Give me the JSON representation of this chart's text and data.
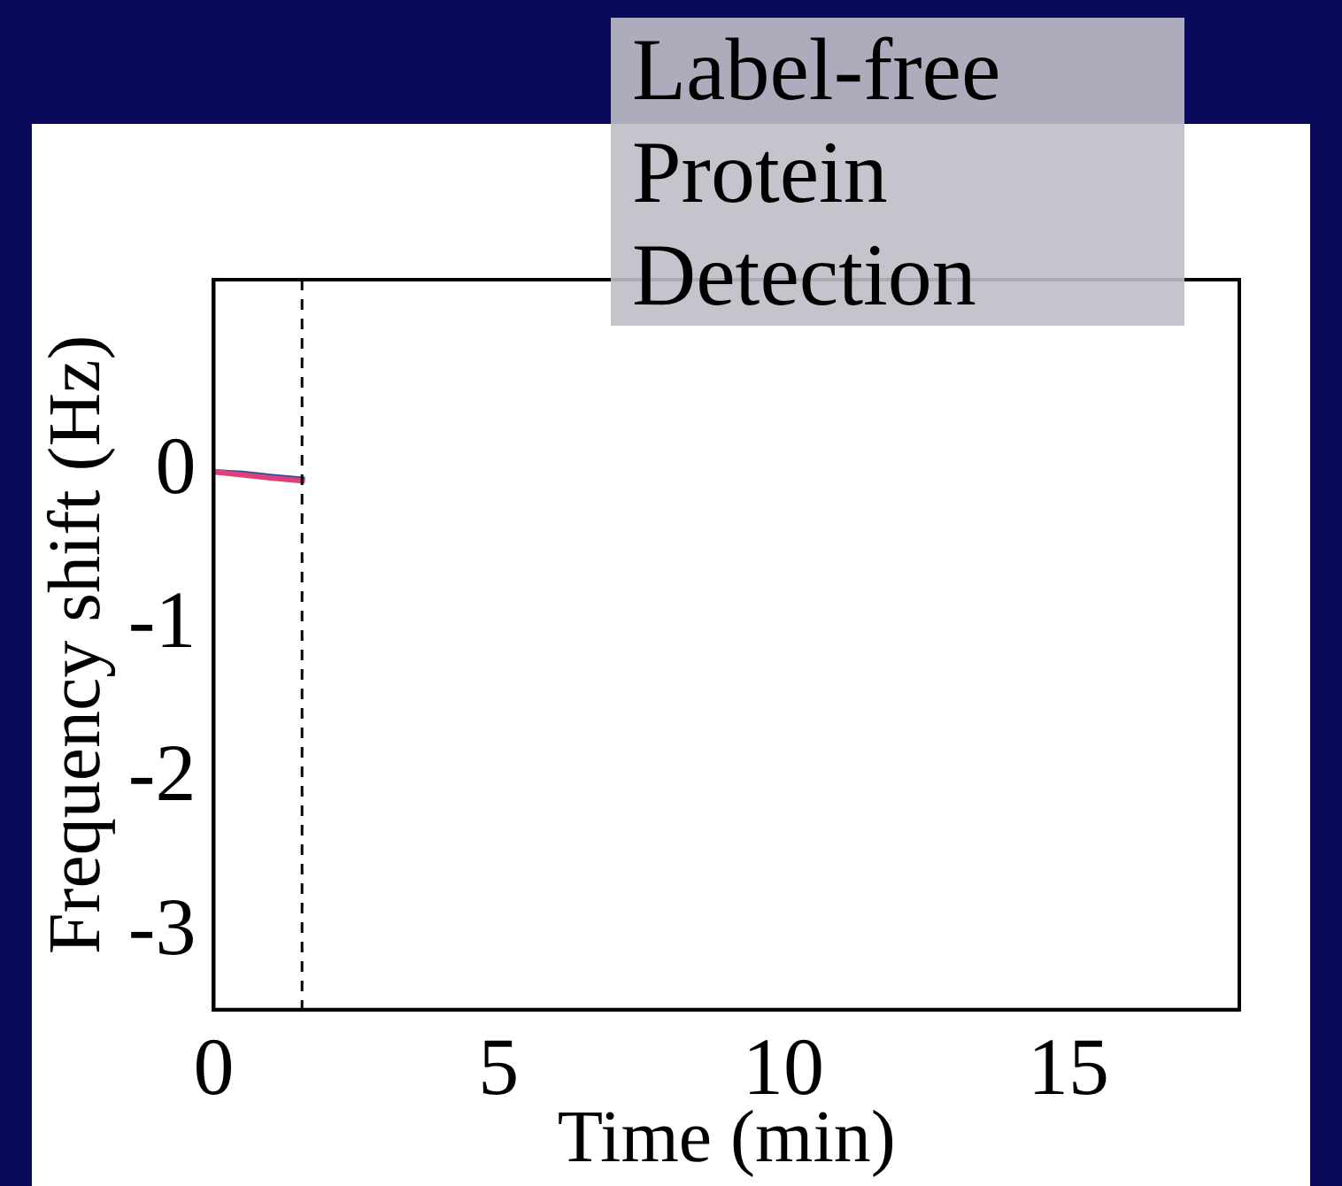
{
  "chart_data": {
    "type": "line",
    "xlabel": "Time (min)",
    "ylabel": "Frequency shift (Hz)",
    "annotations": [
      "Label-free Protein Detection"
    ],
    "series": [
      {
        "color": "#e0407a",
        "x": [
          0,
          0.5,
          1,
          1.6
        ],
        "values": [
          0,
          -0.02,
          -0.04,
          -0.06
        ]
      },
      {
        "color": "#3050a0",
        "x": [
          0,
          0.5,
          1,
          1.6
        ],
        "values": [
          0,
          -0.01,
          -0.03,
          -0.05
        ]
      }
    ],
    "xlim": [
      0,
      18
    ],
    "xticks": [
      0,
      5,
      10,
      15
    ],
    "ylim": [
      -3.5,
      1.25
    ],
    "yticks": [
      0,
      -1,
      -2,
      -3
    ],
    "ref_lines": [
      {
        "axis": "x",
        "value": 1.55,
        "color": "#000000",
        "line_style": "dashed"
      }
    ],
    "grid": false,
    "legend": false,
    "marker": "none",
    "line_style": "solid"
  }
}
